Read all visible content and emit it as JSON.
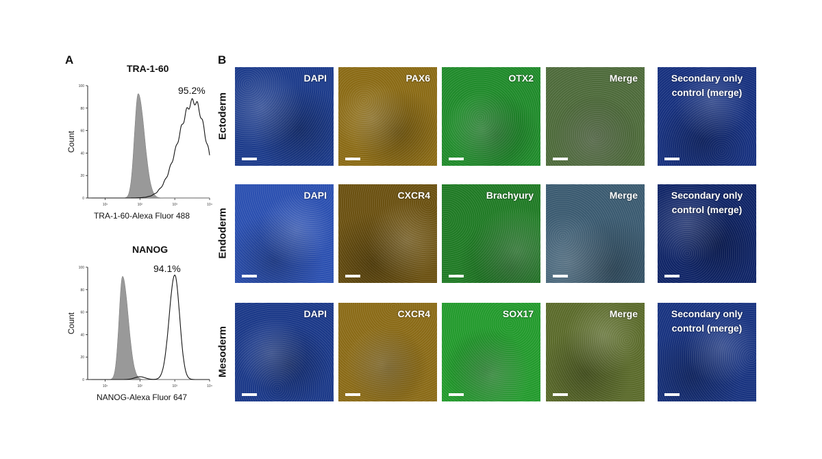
{
  "panel_a": {
    "letter": "A",
    "histograms": [
      {
        "title": "TRA-1-60",
        "percent": "95.2%",
        "ylabel": "Count",
        "xlabel": "TRA-1-60-Alexa Fluor 488",
        "yticks": [
          "0",
          "20",
          "40",
          "60",
          "80",
          "100"
        ],
        "xticks": [
          "10¹",
          "10²",
          "10³",
          "10⁴"
        ],
        "isotype_fill": "#999999",
        "isotype_peak_log": 1.95,
        "isotype_width": 0.12,
        "isotype_height": 93,
        "stained_peak_log": 3.55,
        "stained_height": 86
      },
      {
        "title": "NANOG",
        "percent": "94.1%",
        "ylabel": "Count",
        "xlabel": "NANOG-Alexa Fluor 647",
        "yticks": [
          "0",
          "20",
          "40",
          "60",
          "80",
          "100"
        ],
        "xticks": [
          "10¹",
          "10²",
          "10³",
          "10⁴"
        ],
        "isotype_fill": "#999999",
        "isotype_peak_log": 1.5,
        "isotype_width": 0.11,
        "isotype_height": 92,
        "stained_peak_log": 3.0,
        "stained_height": 93
      }
    ]
  },
  "panel_b": {
    "letter": "B",
    "rows": [
      {
        "label": "Ectoderm",
        "tiles": [
          {
            "label": "DAPI",
            "color": "#1b3a8a"
          },
          {
            "label": "PAX6",
            "color": "#8a6a14"
          },
          {
            "label": "OTX2",
            "color": "#1f8a2a"
          },
          {
            "label": "Merge",
            "color": "#4d6a3a"
          },
          {
            "label": "Secondary only control (merge)",
            "color": "#16307e"
          }
        ]
      },
      {
        "label": "Endoderm",
        "tiles": [
          {
            "label": "DAPI",
            "color": "#2a4fb0"
          },
          {
            "label": "CXCR4",
            "color": "#6a5010"
          },
          {
            "label": "Brachyury",
            "color": "#1f7a24"
          },
          {
            "label": "Merge",
            "color": "#3a5a70"
          },
          {
            "label": "Secondary only control (merge)",
            "color": "#0f2466"
          }
        ]
      },
      {
        "label": "Mesoderm",
        "tiles": [
          {
            "label": "DAPI",
            "color": "#1a3888"
          },
          {
            "label": "CXCR4",
            "color": "#8a6a16"
          },
          {
            "label": "SOX17",
            "color": "#229a2c"
          },
          {
            "label": "Merge",
            "color": "#5a6a2a"
          },
          {
            "label": "Secondary only control (merge)",
            "color": "#17327f"
          }
        ]
      }
    ]
  }
}
